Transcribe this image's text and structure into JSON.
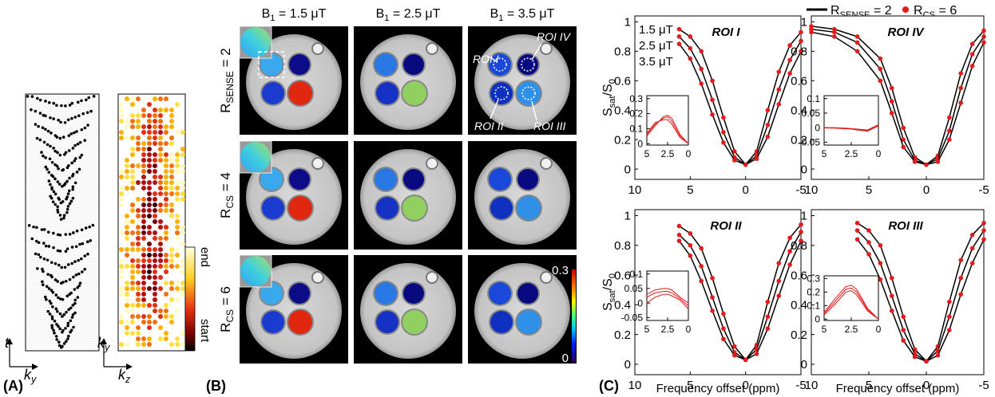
{
  "panel_labels": [
    "(A)",
    "(B)",
    "(C)"
  ],
  "panel_a": {
    "t_label": "t",
    "ky_label": [
      {
        "t": "k"
      },
      {
        "t": "y",
        "sub": true
      }
    ],
    "ky_label2": [
      {
        "t": "k"
      },
      {
        "t": "y",
        "sub": true
      }
    ],
    "kz_label": [
      {
        "t": "k"
      },
      {
        "t": "z",
        "sub": true
      }
    ],
    "colorbar": [
      "end",
      "start"
    ]
  },
  "panel_b": {
    "columns": [
      [
        {
          "t": "B"
        },
        {
          "t": "1",
          "sub": true
        },
        {
          "t": " = 1.5 μT"
        }
      ],
      [
        {
          "t": "B"
        },
        {
          "t": "1",
          "sub": true
        },
        {
          "t": " = 2.5 μT"
        }
      ],
      [
        {
          "t": "B"
        },
        {
          "t": "1",
          "sub": true
        },
        {
          "t": " = 3.5 μT"
        }
      ]
    ],
    "rows": [
      [
        {
          "t": "R"
        },
        {
          "t": "SENSE",
          "sub": true
        },
        {
          "t": " = 2"
        }
      ],
      [
        {
          "t": "R"
        },
        {
          "t": "CS",
          "sub": true
        },
        {
          "t": " = 4"
        }
      ],
      [
        {
          "t": "R"
        },
        {
          "t": "CS",
          "sub": true
        },
        {
          "t": " = 6"
        }
      ]
    ],
    "roi_labels": [
      "ROI I",
      "ROI IV",
      "ROI II",
      "ROI III"
    ],
    "colorbar_ticks": [
      0.3,
      0
    ]
  },
  "legend": [
    {
      "label": [
        {
          "t": "R"
        },
        {
          "t": "SENSE",
          "sub": true
        },
        {
          "t": " = 2"
        }
      ],
      "color": "#000000",
      "marker": "line"
    },
    {
      "label": [
        {
          "t": "R"
        },
        {
          "t": "CS",
          "sub": true
        },
        {
          "t": " = 6"
        }
      ],
      "color": "#e41a1c",
      "marker": "dot"
    }
  ],
  "chart_data": [
    {
      "type": "line",
      "title": "ROI I",
      "ylabel": [
        {
          "t": "S"
        },
        {
          "t": "sat",
          "sub": true
        },
        {
          "t": "/S"
        },
        {
          "t": "0",
          "sub": true
        }
      ],
      "annotations": [
        "1.5 μT",
        "2.5 μT",
        "3.5 μT"
      ],
      "x": [
        6,
        5,
        4,
        3,
        2,
        1,
        0,
        -1,
        -2,
        -3,
        -4,
        -5
      ],
      "xlim": [
        10,
        -5
      ],
      "xticks": [
        10,
        5,
        0,
        -5
      ],
      "ylim": [
        -0.07,
        1.04
      ],
      "yticks": [
        0,
        0.2,
        0.4,
        0.6,
        0.8,
        1
      ],
      "line_color": "#000000",
      "dot_color": "#e41a1c",
      "series": [
        {
          "values": [
            0.95,
            0.9,
            0.8,
            0.6,
            0.35,
            0.12,
            0.03,
            0.12,
            0.4,
            0.66,
            0.84,
            0.93
          ]
        },
        {
          "values": [
            0.9,
            0.82,
            0.68,
            0.47,
            0.25,
            0.08,
            0.03,
            0.09,
            0.3,
            0.54,
            0.74,
            0.87
          ]
        },
        {
          "values": [
            0.85,
            0.75,
            0.58,
            0.37,
            0.18,
            0.06,
            0.03,
            0.07,
            0.22,
            0.44,
            0.65,
            0.8
          ]
        }
      ],
      "inset": {
        "x": [
          5,
          4,
          3,
          2.5,
          2,
          1,
          0
        ],
        "xlim": [
          5,
          0
        ],
        "xticks": [
          5,
          2.5,
          0
        ],
        "ylim": [
          -0.01,
          0.32
        ],
        "yticks": [
          0,
          0.1,
          0.2,
          0.3
        ],
        "series": [
          {
            "values": [
              0.05,
              0.12,
              0.18,
              0.19,
              0.17,
              0.06,
              0
            ]
          },
          {
            "values": [
              0.06,
              0.13,
              0.17,
              0.18,
              0.15,
              0.05,
              0
            ]
          },
          {
            "values": [
              0.07,
              0.14,
              0.16,
              0.16,
              0.13,
              0.04,
              0
            ]
          }
        ]
      }
    },
    {
      "type": "line",
      "title": "ROI IV",
      "x": [
        10,
        8,
        6,
        4,
        3,
        2,
        1,
        0,
        -1,
        -2,
        -3,
        -4,
        -5
      ],
      "xlim": [
        10,
        -5
      ],
      "xticks": [
        10,
        5,
        0,
        -5
      ],
      "ylim": [
        -0.07,
        1.04
      ],
      "yticks": [
        0,
        0.2,
        0.4,
        0.6,
        0.8,
        1
      ],
      "line_color": "#000000",
      "dot_color": "#e41a1c",
      "series": [
        {
          "values": [
            0.97,
            0.95,
            0.9,
            0.75,
            0.55,
            0.28,
            0.08,
            0.03,
            0.09,
            0.35,
            0.65,
            0.85,
            0.94
          ]
        },
        {
          "values": [
            0.95,
            0.93,
            0.86,
            0.68,
            0.46,
            0.2,
            0.06,
            0.03,
            0.07,
            0.26,
            0.55,
            0.78,
            0.9
          ]
        },
        {
          "values": [
            0.93,
            0.9,
            0.8,
            0.6,
            0.38,
            0.15,
            0.05,
            0.03,
            0.05,
            0.2,
            0.45,
            0.7,
            0.86
          ]
        }
      ],
      "inset": {
        "x": [
          5,
          4,
          3,
          2.5,
          2,
          1,
          0
        ],
        "xlim": [
          5,
          0
        ],
        "xticks": [
          5,
          2.5,
          0
        ],
        "ylim": [
          -0.06,
          0.11
        ],
        "yticks": [
          -0.05,
          0,
          0.05,
          0.1
        ],
        "series": [
          {
            "values": [
              0,
              0,
              -0.002,
              -0.003,
              -0.005,
              -0.008,
              0.01
            ]
          },
          {
            "values": [
              0,
              -0.001,
              -0.003,
              -0.004,
              -0.006,
              -0.01,
              0.008
            ]
          },
          {
            "values": [
              -0.001,
              -0.002,
              -0.004,
              -0.005,
              -0.008,
              -0.012,
              0.006
            ]
          }
        ]
      }
    },
    {
      "type": "line",
      "title": "ROI II",
      "ylabel": [
        {
          "t": "S"
        },
        {
          "t": "sat",
          "sub": true
        },
        {
          "t": "/S"
        },
        {
          "t": "0",
          "sub": true
        }
      ],
      "xlabel": "Frequency offset (ppm)",
      "x": [
        6,
        5,
        4,
        3,
        2,
        1,
        0,
        -1,
        -2,
        -3,
        -4,
        -5
      ],
      "xlim": [
        10,
        -5
      ],
      "xticks": [
        10,
        5,
        0,
        -5
      ],
      "ylim": [
        -0.07,
        1.04
      ],
      "yticks": [
        0,
        0.2,
        0.4,
        0.6,
        0.8,
        1
      ],
      "line_color": "#000000",
      "dot_color": "#e41a1c",
      "series": [
        {
          "values": [
            0.93,
            0.88,
            0.78,
            0.58,
            0.34,
            0.12,
            0.03,
            0.13,
            0.42,
            0.68,
            0.85,
            0.94
          ]
        },
        {
          "values": [
            0.87,
            0.8,
            0.66,
            0.45,
            0.24,
            0.08,
            0.03,
            0.1,
            0.32,
            0.56,
            0.76,
            0.89
          ]
        },
        {
          "values": [
            0.83,
            0.73,
            0.56,
            0.36,
            0.17,
            0.06,
            0.03,
            0.07,
            0.24,
            0.46,
            0.67,
            0.83
          ]
        }
      ],
      "inset": {
        "x": [
          5,
          4,
          3,
          2.5,
          2,
          1,
          0
        ],
        "xlim": [
          5,
          0
        ],
        "xticks": [
          5,
          2.5,
          0
        ],
        "ylim": [
          -0.06,
          0.11
        ],
        "yticks": [
          -0.05,
          0,
          0.05,
          0.1
        ],
        "series": [
          {
            "values": [
              0.03,
              0.045,
              0.05,
              0.05,
              0.045,
              0.02,
              0
            ]
          },
          {
            "values": [
              0.02,
              0.035,
              0.04,
              0.04,
              0.035,
              0.015,
              -0.01
            ]
          },
          {
            "values": [
              0,
              0.02,
              0.03,
              0.03,
              0.025,
              0.01,
              -0.02
            ]
          }
        ]
      }
    },
    {
      "type": "line",
      "title": "ROI III",
      "xlabel": "Frequency offset (ppm)",
      "x": [
        6,
        5,
        4,
        3,
        2,
        1,
        0,
        -1,
        -2,
        -3,
        -4,
        -5
      ],
      "xlim": [
        10,
        -5
      ],
      "xticks": [
        10,
        5,
        0,
        -5
      ],
      "ylim": [
        -0.07,
        1.04
      ],
      "yticks": [
        0,
        0.2,
        0.4,
        0.6,
        0.8,
        1
      ],
      "line_color": "#000000",
      "dot_color": "#e41a1c",
      "series": [
        {
          "values": [
            0.95,
            0.9,
            0.8,
            0.58,
            0.32,
            0.1,
            0.02,
            0.12,
            0.42,
            0.7,
            0.87,
            0.95
          ]
        },
        {
          "values": [
            0.9,
            0.82,
            0.68,
            0.46,
            0.23,
            0.07,
            0.02,
            0.09,
            0.32,
            0.58,
            0.78,
            0.9
          ]
        },
        {
          "values": [
            0.84,
            0.74,
            0.57,
            0.36,
            0.16,
            0.05,
            0.02,
            0.06,
            0.23,
            0.47,
            0.68,
            0.84
          ]
        }
      ],
      "inset": {
        "x": [
          5,
          4,
          3,
          2.5,
          2,
          1,
          0
        ],
        "xlim": [
          5,
          0
        ],
        "xticks": [
          5,
          2.5,
          0
        ],
        "ylim": [
          -0.01,
          0.32
        ],
        "yticks": [
          0,
          0.1,
          0.2,
          0.3
        ],
        "series": [
          {
            "values": [
              0.05,
              0.15,
              0.24,
              0.25,
              0.22,
              0.08,
              0
            ]
          },
          {
            "values": [
              0.04,
              0.13,
              0.22,
              0.23,
              0.2,
              0.07,
              0
            ]
          },
          {
            "values": [
              0.03,
              0.11,
              0.2,
              0.21,
              0.18,
              0.06,
              0
            ]
          }
        ]
      }
    }
  ]
}
